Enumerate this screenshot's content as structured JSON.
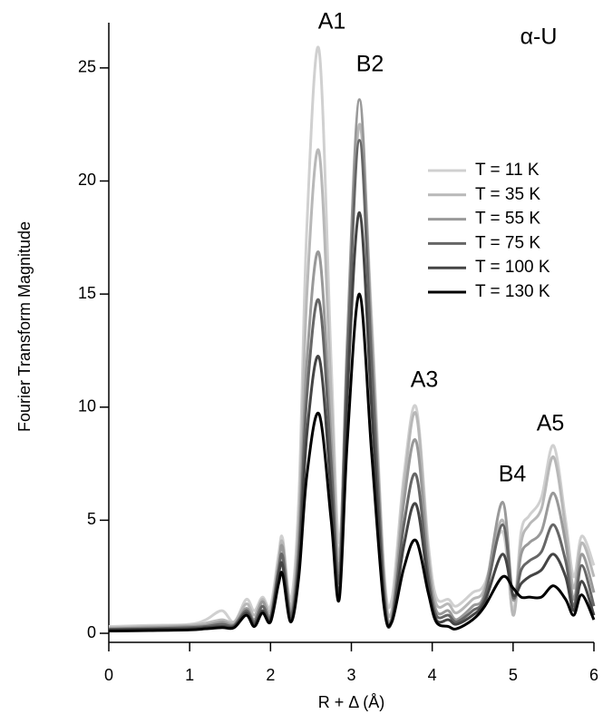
{
  "chart_data": {
    "type": "line",
    "annotations": [
      "A1",
      "B2",
      "A3",
      "B4",
      "A5",
      "α-U"
    ],
    "xlabel": "R + Δ (Å)",
    "ylabel": "Fourier Transform Magnitude",
    "x": [
      0,
      0.5,
      1.0,
      1.2,
      1.4,
      1.55,
      1.7,
      1.8,
      1.9,
      2.0,
      2.1,
      2.15,
      2.25,
      2.35,
      2.45,
      2.6,
      2.75,
      2.85,
      2.95,
      3.1,
      3.25,
      3.4,
      3.5,
      3.65,
      3.8,
      3.95,
      4.05,
      4.2,
      4.3,
      4.5,
      4.65,
      4.87,
      5.0,
      5.1,
      5.2,
      5.35,
      5.5,
      5.65,
      5.75,
      5.85,
      6.0
    ],
    "series": [
      {
        "name": "T = 11 K",
        "color": "#d0d0d0",
        "values": [
          0.3,
          0.35,
          0.4,
          0.6,
          1.0,
          0.5,
          1.5,
          1.0,
          1.6,
          1.2,
          3.5,
          4.2,
          1.5,
          6,
          18,
          25.8,
          12,
          4,
          12,
          22.5,
          14,
          3,
          1.5,
          7,
          10,
          4,
          1.6,
          1.5,
          1.2,
          1.8,
          2.2,
          4.5,
          1.0,
          4.5,
          5.2,
          6,
          8.3,
          5,
          2.5,
          4.3,
          3.0
        ]
      },
      {
        "name": "T = 35 K",
        "color": "#b8b8b8",
        "values": [
          0.25,
          0.3,
          0.35,
          0.45,
          0.6,
          0.5,
          1.3,
          0.8,
          1.5,
          1.0,
          3.2,
          4.0,
          1.2,
          5,
          15,
          21.3,
          10.5,
          3.3,
          12.5,
          22.5,
          13.5,
          2.8,
          1.0,
          6.5,
          9.7,
          3.6,
          1.3,
          1.3,
          0.9,
          1.5,
          2.0,
          5.0,
          0.8,
          4.0,
          4.8,
          5.5,
          7.8,
          4.6,
          2.0,
          4.0,
          2.5
        ]
      },
      {
        "name": "T = 55 K",
        "color": "#999999",
        "values": [
          0.2,
          0.25,
          0.3,
          0.35,
          0.5,
          0.4,
          1.1,
          0.6,
          1.4,
          0.8,
          3.0,
          3.8,
          1.0,
          4.2,
          12,
          16.8,
          8.5,
          2.8,
          13,
          23.6,
          13,
          2.5,
          0.7,
          5.8,
          8.5,
          3.2,
          1.0,
          1.0,
          0.6,
          1.2,
          1.8,
          5.8,
          1.5,
          3.5,
          4.0,
          4.5,
          6.2,
          4.0,
          1.5,
          3.5,
          1.8
        ]
      },
      {
        "name": "T = 75 K",
        "color": "#666666",
        "values": [
          0.18,
          0.2,
          0.25,
          0.3,
          0.4,
          0.35,
          1.0,
          0.5,
          1.2,
          0.7,
          2.8,
          3.4,
          0.8,
          3.5,
          10.5,
          14.7,
          7.5,
          2.3,
          12,
          21.8,
          12,
          2.0,
          0.6,
          4.8,
          7.0,
          2.6,
          0.8,
          0.8,
          0.5,
          1.0,
          1.6,
          4.8,
          1.6,
          2.8,
          3.2,
          3.6,
          4.8,
          3.2,
          1.2,
          3.0,
          1.2
        ]
      },
      {
        "name": "T = 100 K",
        "color": "#444444",
        "values": [
          0.15,
          0.18,
          0.2,
          0.25,
          0.3,
          0.3,
          0.9,
          0.4,
          1.0,
          0.6,
          2.6,
          3.0,
          0.6,
          3.0,
          8.8,
          12.2,
          6.2,
          1.8,
          10.5,
          18.6,
          10,
          1.6,
          0.5,
          3.9,
          5.7,
          2.2,
          0.6,
          0.6,
          0.4,
          0.8,
          1.4,
          3.5,
          1.7,
          2.2,
          2.5,
          2.8,
          3.5,
          2.5,
          1.0,
          2.3,
          0.8
        ]
      },
      {
        "name": "T = 130 K",
        "color": "#000000",
        "values": [
          0.1,
          0.12,
          0.15,
          0.2,
          0.25,
          0.25,
          0.8,
          0.3,
          0.9,
          0.5,
          2.2,
          2.6,
          0.5,
          2.5,
          7,
          9.7,
          5,
          1.5,
          8.5,
          15,
          8,
          1.3,
          0.5,
          2.9,
          4.1,
          1.8,
          0.5,
          0.3,
          0.2,
          0.6,
          1.2,
          2.5,
          2.0,
          1.6,
          1.6,
          1.6,
          2.1,
          1.5,
          0.8,
          1.7,
          0.6
        ]
      }
    ],
    "xlim": [
      0,
      6
    ],
    "xticks": [
      0,
      1,
      2,
      3,
      4,
      5,
      6
    ],
    "ylim": [
      -0.4,
      27
    ],
    "yticks": [
      0,
      5,
      10,
      15,
      20,
      25
    ],
    "grid": false,
    "legend": "upper right"
  }
}
